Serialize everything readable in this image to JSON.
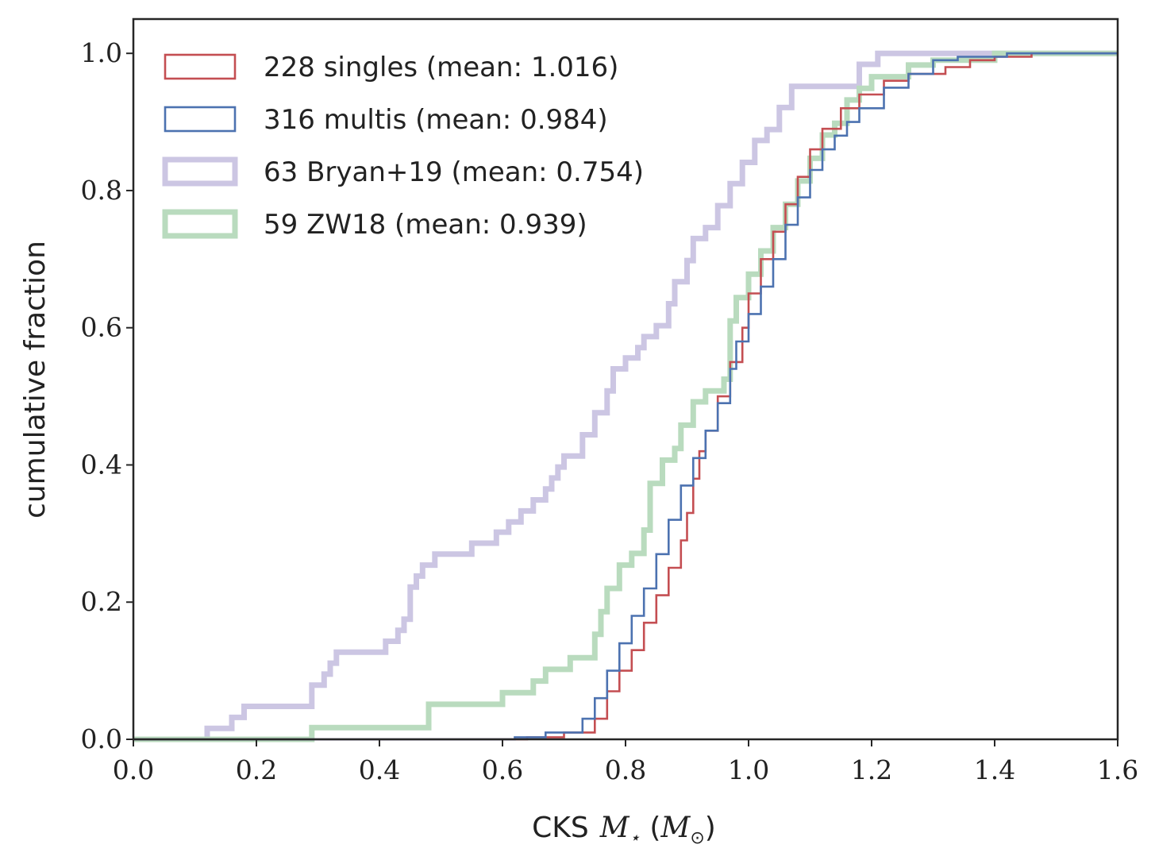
{
  "chart_data": {
    "type": "line",
    "subtype": "cumulative-step",
    "title": "",
    "xlabel": "CKS",
    "xlabel_math": "M",
    "xlabel_math_sub": "⋆",
    "xlabel_unit_open": "(",
    "xlabel_unit_math": "M",
    "xlabel_unit_sub": "⊙",
    "xlabel_unit_close": ")",
    "ylabel": "cumulative fraction",
    "xlim": [
      0.0,
      1.6
    ],
    "ylim": [
      0.0,
      1.05
    ],
    "xticks": [
      "0.0",
      "0.2",
      "0.4",
      "0.6",
      "0.8",
      "1.0",
      "1.2",
      "1.4",
      "1.6"
    ],
    "yticks": [
      "0.0",
      "0.2",
      "0.4",
      "0.6",
      "0.8",
      "1.0"
    ],
    "legend_position": "top-left",
    "series": [
      {
        "name": "228 singles (mean: 1.016)",
        "color": "#c44e52",
        "weight": "thin",
        "x": [
          0.0,
          0.64,
          0.7,
          0.75,
          0.77,
          0.79,
          0.81,
          0.83,
          0.85,
          0.87,
          0.89,
          0.9,
          0.91,
          0.92,
          0.93,
          0.95,
          0.97,
          0.99,
          1.0,
          1.02,
          1.04,
          1.06,
          1.08,
          1.1,
          1.12,
          1.15,
          1.18,
          1.22,
          1.26,
          1.32,
          1.36,
          1.4,
          1.46
        ],
        "y": [
          0.0,
          0.003,
          0.01,
          0.03,
          0.07,
          0.1,
          0.13,
          0.17,
          0.21,
          0.25,
          0.29,
          0.33,
          0.38,
          0.42,
          0.45,
          0.5,
          0.55,
          0.6,
          0.65,
          0.7,
          0.74,
          0.78,
          0.82,
          0.86,
          0.89,
          0.92,
          0.94,
          0.96,
          0.97,
          0.98,
          0.99,
          0.995,
          1.0
        ]
      },
      {
        "name": "316 multis (mean: 0.984)",
        "color": "#4c72b0",
        "weight": "thin",
        "x": [
          0.0,
          0.62,
          0.67,
          0.73,
          0.75,
          0.77,
          0.79,
          0.81,
          0.83,
          0.85,
          0.87,
          0.89,
          0.91,
          0.93,
          0.95,
          0.97,
          0.98,
          1.0,
          1.02,
          1.04,
          1.06,
          1.08,
          1.1,
          1.12,
          1.14,
          1.16,
          1.18,
          1.22,
          1.26,
          1.3,
          1.34,
          1.42
        ],
        "y": [
          0.0,
          0.003,
          0.01,
          0.03,
          0.06,
          0.1,
          0.14,
          0.18,
          0.22,
          0.27,
          0.32,
          0.37,
          0.41,
          0.45,
          0.49,
          0.54,
          0.58,
          0.62,
          0.66,
          0.7,
          0.75,
          0.79,
          0.83,
          0.86,
          0.88,
          0.9,
          0.92,
          0.95,
          0.97,
          0.99,
          0.995,
          1.0
        ]
      },
      {
        "name": "63 Bryan+19 (mean: 0.754)",
        "color": "#ccc6e3",
        "weight": "thick",
        "x": [
          0.0,
          0.12,
          0.16,
          0.18,
          0.29,
          0.31,
          0.32,
          0.33,
          0.41,
          0.43,
          0.44,
          0.45,
          0.46,
          0.47,
          0.49,
          0.51,
          0.53,
          0.55,
          0.59,
          0.61,
          0.63,
          0.65,
          0.67,
          0.68,
          0.69,
          0.7,
          0.71,
          0.73,
          0.75,
          0.77,
          0.78,
          0.8,
          0.82,
          0.83,
          0.85,
          0.87,
          0.88,
          0.9,
          0.91,
          0.93,
          0.95,
          0.97,
          0.99,
          1.01,
          1.03,
          1.05,
          1.07,
          1.09,
          1.18,
          1.21
        ],
        "y": [
          0.0,
          0.016,
          0.032,
          0.048,
          0.079,
          0.095,
          0.111,
          0.127,
          0.143,
          0.159,
          0.175,
          0.222,
          0.238,
          0.254,
          0.27,
          0.27,
          0.27,
          0.286,
          0.302,
          0.317,
          0.333,
          0.349,
          0.365,
          0.381,
          0.397,
          0.413,
          0.413,
          0.444,
          0.476,
          0.508,
          0.54,
          0.556,
          0.571,
          0.587,
          0.603,
          0.635,
          0.667,
          0.698,
          0.73,
          0.746,
          0.778,
          0.81,
          0.841,
          0.873,
          0.889,
          0.921,
          0.952,
          0.952,
          0.984,
          1.0
        ]
      },
      {
        "name": "59 ZW18 (mean: 0.939)",
        "color": "#b9dbbe",
        "weight": "thick",
        "x": [
          0.0,
          0.29,
          0.48,
          0.6,
          0.65,
          0.67,
          0.71,
          0.75,
          0.76,
          0.77,
          0.79,
          0.81,
          0.83,
          0.84,
          0.86,
          0.88,
          0.89,
          0.91,
          0.93,
          0.96,
          0.97,
          0.98,
          1.0,
          1.02,
          1.04,
          1.06,
          1.08,
          1.1,
          1.12,
          1.14,
          1.16,
          1.18,
          1.2,
          1.26,
          1.3,
          1.4
        ],
        "y": [
          0.0,
          0.017,
          0.051,
          0.068,
          0.085,
          0.102,
          0.119,
          0.153,
          0.186,
          0.22,
          0.254,
          0.271,
          0.305,
          0.373,
          0.407,
          0.424,
          0.458,
          0.492,
          0.508,
          0.525,
          0.61,
          0.644,
          0.678,
          0.712,
          0.746,
          0.78,
          0.814,
          0.847,
          0.881,
          0.898,
          0.932,
          0.949,
          0.966,
          0.983,
          0.99,
          1.0
        ]
      }
    ]
  }
}
